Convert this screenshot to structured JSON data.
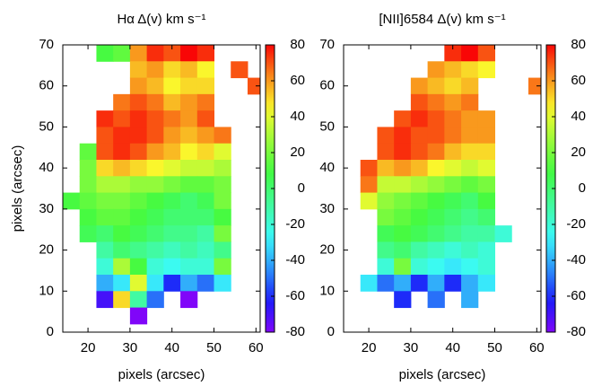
{
  "chart_data": [
    {
      "type": "heatmap",
      "title": "Hα Δ(v) km s⁻¹",
      "xlabel": "pixels (arcsec)",
      "ylabel": "pixels (arcsec)",
      "colormap": "rainbow",
      "x": [
        16,
        20,
        24,
        28,
        32,
        36,
        40,
        44,
        48,
        52,
        56,
        60
      ],
      "y": [
        68,
        64,
        60,
        56,
        52,
        48,
        44,
        40,
        36,
        32,
        28,
        24,
        20,
        16,
        12,
        8,
        4
      ],
      "z": [
        [
          null,
          null,
          10,
          15,
          60,
          75,
          70,
          80,
          75,
          null,
          null,
          null
        ],
        [
          null,
          null,
          null,
          null,
          55,
          60,
          50,
          55,
          45,
          null,
          70,
          null
        ],
        [
          null,
          null,
          null,
          null,
          60,
          55,
          45,
          50,
          50,
          null,
          null,
          70
        ],
        [
          null,
          null,
          null,
          65,
          70,
          65,
          55,
          60,
          65,
          null,
          null,
          null
        ],
        [
          null,
          null,
          75,
          70,
          75,
          70,
          65,
          60,
          70,
          null,
          null,
          null
        ],
        [
          null,
          null,
          70,
          75,
          75,
          70,
          60,
          55,
          60,
          65,
          null,
          null
        ],
        [
          null,
          15,
          70,
          75,
          70,
          60,
          55,
          45,
          50,
          40,
          null,
          null
        ],
        [
          null,
          20,
          50,
          55,
          50,
          45,
          40,
          35,
          35,
          30,
          null,
          null
        ],
        [
          null,
          20,
          30,
          30,
          25,
          25,
          20,
          15,
          15,
          20,
          null,
          null
        ],
        [
          10,
          15,
          20,
          20,
          15,
          10,
          5,
          0,
          5,
          20,
          null,
          null
        ],
        [
          null,
          10,
          15,
          15,
          10,
          5,
          0,
          0,
          0,
          10,
          null,
          null
        ],
        [
          null,
          5,
          0,
          10,
          5,
          0,
          -5,
          -5,
          -10,
          20,
          null,
          null
        ],
        [
          null,
          null,
          -10,
          0,
          -5,
          -10,
          -15,
          -10,
          -15,
          -5,
          null,
          null
        ],
        [
          null,
          null,
          -20,
          30,
          10,
          -20,
          -25,
          -20,
          -20,
          20,
          null,
          null
        ],
        [
          null,
          null,
          -40,
          -30,
          40,
          -30,
          -60,
          -40,
          -50,
          -30,
          null,
          null
        ],
        [
          null,
          null,
          -70,
          50,
          -10,
          -50,
          null,
          -80,
          null,
          null,
          null,
          null
        ],
        [
          null,
          null,
          null,
          null,
          -80,
          null,
          null,
          null,
          null,
          null,
          null,
          null
        ]
      ],
      "xlim": [
        14,
        61
      ],
      "ylim": [
        0,
        70
      ],
      "xticks": [
        20,
        30,
        40,
        50,
        60
      ],
      "yticks": [
        0,
        10,
        20,
        30,
        40,
        50,
        60,
        70
      ],
      "clim": [
        -80,
        80
      ],
      "cticks": [
        -80,
        -60,
        -40,
        -20,
        0,
        20,
        40,
        60,
        80
      ]
    },
    {
      "type": "heatmap",
      "title": "[NII]6584 Δ(v) km s⁻¹",
      "xlabel": "pixels (arcsec)",
      "colormap": "rainbow",
      "x": [
        16,
        20,
        24,
        28,
        32,
        36,
        40,
        44,
        48,
        52,
        56,
        60
      ],
      "y": [
        68,
        64,
        60,
        56,
        52,
        48,
        44,
        40,
        36,
        32,
        28,
        24,
        20,
        16,
        12,
        8
      ],
      "z": [
        [
          null,
          null,
          null,
          null,
          null,
          null,
          75,
          80,
          70,
          null,
          null,
          null
        ],
        [
          null,
          null,
          null,
          null,
          null,
          60,
          55,
          50,
          45,
          null,
          null,
          null
        ],
        [
          null,
          null,
          null,
          null,
          60,
          55,
          50,
          55,
          null,
          null,
          null,
          65
        ],
        [
          null,
          null,
          null,
          null,
          70,
          65,
          60,
          65,
          null,
          null,
          null,
          null
        ],
        [
          null,
          null,
          null,
          70,
          75,
          70,
          65,
          60,
          60,
          null,
          null,
          null
        ],
        [
          null,
          null,
          70,
          75,
          70,
          70,
          65,
          60,
          60,
          null,
          null,
          null
        ],
        [
          null,
          null,
          70,
          75,
          70,
          65,
          55,
          50,
          50,
          null,
          null,
          null
        ],
        [
          null,
          70,
          55,
          60,
          55,
          45,
          40,
          35,
          40,
          null,
          null,
          null
        ],
        [
          null,
          65,
          35,
          35,
          30,
          25,
          20,
          15,
          20,
          null,
          null,
          null
        ],
        [
          null,
          40,
          25,
          20,
          15,
          10,
          5,
          0,
          10,
          null,
          null,
          null
        ],
        [
          null,
          null,
          20,
          15,
          10,
          5,
          0,
          -5,
          0,
          null,
          null,
          null
        ],
        [
          null,
          null,
          5,
          10,
          5,
          0,
          -5,
          -10,
          -10,
          -20,
          null,
          null
        ],
        [
          null,
          null,
          -5,
          0,
          -10,
          -15,
          -20,
          -15,
          -20,
          null,
          null,
          null
        ],
        [
          null,
          null,
          -20,
          20,
          -20,
          -25,
          -30,
          -25,
          -20,
          null,
          null,
          null
        ],
        [
          null,
          -30,
          -50,
          -40,
          -60,
          -40,
          -60,
          -40,
          -30,
          null,
          null,
          null
        ],
        [
          null,
          null,
          null,
          -60,
          null,
          -50,
          null,
          -40,
          null,
          null,
          null,
          null
        ]
      ],
      "xlim": [
        14,
        61
      ],
      "ylim": [
        0,
        70
      ],
      "xticks": [
        20,
        30,
        40,
        50,
        60
      ],
      "yticks": [
        0,
        10,
        20,
        30,
        40,
        50,
        60,
        70
      ],
      "clim": [
        -80,
        80
      ],
      "cticks": [
        -80,
        -60,
        -40,
        -20,
        0,
        20,
        40,
        60,
        80
      ]
    }
  ]
}
